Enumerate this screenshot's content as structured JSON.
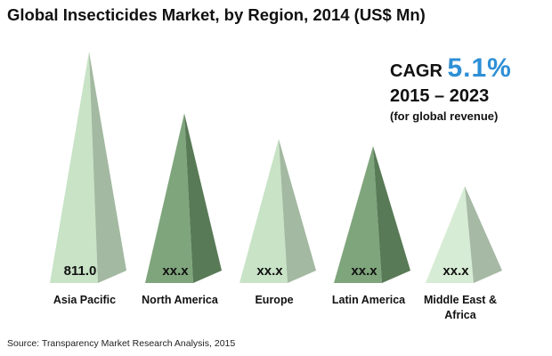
{
  "title": "Global Insecticides Market, by Region, 2014 (US$ Mn)",
  "cagr": {
    "label": "CAGR",
    "value": "5.1%",
    "period": "2015 – 2023",
    "note": "(for global revenue)"
  },
  "source": "Source:  Transparency Market Research Analysis, 2015",
  "colors": {
    "pyramid_light": [
      "#c8e3c6",
      "#7fa57c",
      "#c8e3c6",
      "#7fa57c",
      "#d7ecd5"
    ],
    "pyramid_dark": [
      "#a3b9a1",
      "#587a56",
      "#a3b9a1",
      "#587a56",
      "#a6b9a5"
    ],
    "cagr_value": "#2e8fd6"
  },
  "chart_data": {
    "type": "bar",
    "style": "pyramid",
    "categories": [
      "Asia Pacific",
      "North America",
      "Europe",
      "Latin America",
      "Middle East & Africa"
    ],
    "category_lines": [
      [
        "Asia Pacific"
      ],
      [
        "North America"
      ],
      [
        "Europe"
      ],
      [
        "Latin America"
      ],
      [
        "Middle East &",
        "Africa"
      ]
    ],
    "value_labels": [
      "811.0",
      "xx.x",
      "xx.x",
      "xx.x",
      "xx.x"
    ],
    "values": [
      811.0,
      595.0,
      505.0,
      480.0,
      340.0
    ],
    "title": "Global Insecticides Market, by Region, 2014 (US$ Mn)",
    "xlabel": "",
    "ylabel": "",
    "ylim": [
      0,
      811.0
    ],
    "grid": false,
    "legend": "none"
  }
}
